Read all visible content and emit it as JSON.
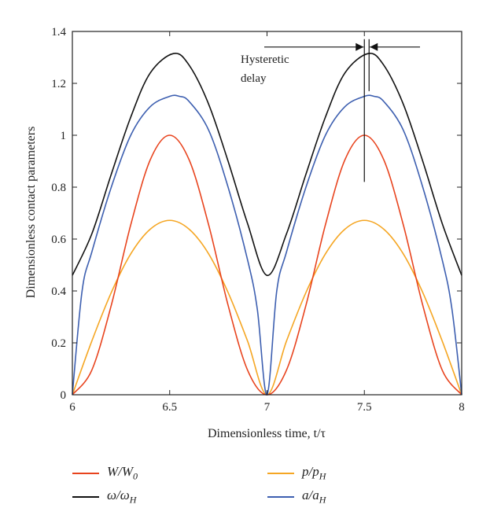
{
  "chart_data": {
    "type": "line",
    "xlabel": "Dimensionless time, t/τ",
    "ylabel": "Dimensionless contact parameters",
    "xlim": [
      6,
      8
    ],
    "ylim": [
      0,
      1.4
    ],
    "xticks": [
      "6",
      "6.5",
      "7",
      "7.5",
      "8"
    ],
    "yticks": [
      "0",
      "0.2",
      "0.4",
      "0.6",
      "0.8",
      "1",
      "1.2",
      "1.4"
    ],
    "grid": false,
    "legend_position": "bottom",
    "annotation": {
      "text_line1": "Hysteretic",
      "text_line2": "delay",
      "x": 7.5,
      "y": 1.34
    },
    "series": [
      {
        "name": "W/W0",
        "color": "#e8431d",
        "x": [
          6.0,
          6.1,
          6.2,
          6.3,
          6.4,
          6.5,
          6.6,
          6.7,
          6.8,
          6.9,
          7.0,
          7.1,
          7.2,
          7.3,
          7.4,
          7.5,
          7.6,
          7.7,
          7.8,
          7.9,
          8.0
        ],
        "values": [
          0.0,
          0.095,
          0.345,
          0.655,
          0.905,
          1.0,
          0.905,
          0.655,
          0.345,
          0.095,
          0.0,
          0.095,
          0.345,
          0.655,
          0.905,
          1.0,
          0.905,
          0.655,
          0.345,
          0.095,
          0.0
        ]
      },
      {
        "name": "ω/ωH",
        "color": "#111111",
        "x": [
          6.0,
          6.1,
          6.2,
          6.3,
          6.4,
          6.52,
          6.6,
          6.7,
          6.8,
          6.9,
          7.0,
          7.1,
          7.2,
          7.3,
          7.4,
          7.52,
          7.6,
          7.7,
          7.8,
          7.9,
          8.0
        ],
        "values": [
          0.46,
          0.62,
          0.85,
          1.07,
          1.24,
          1.315,
          1.27,
          1.12,
          0.9,
          0.66,
          0.46,
          0.62,
          0.85,
          1.07,
          1.24,
          1.315,
          1.27,
          1.12,
          0.9,
          0.66,
          0.46
        ]
      },
      {
        "name": "p/pH",
        "color": "#f5a623",
        "x": [
          6.0,
          6.1,
          6.2,
          6.3,
          6.4,
          6.5,
          6.6,
          6.7,
          6.8,
          6.9,
          7.0,
          7.1,
          7.2,
          7.3,
          7.4,
          7.5,
          7.6,
          7.7,
          7.8,
          7.9,
          8.0
        ],
        "values": [
          0.0,
          0.207,
          0.394,
          0.543,
          0.638,
          0.672,
          0.638,
          0.543,
          0.394,
          0.207,
          0.0,
          0.207,
          0.394,
          0.543,
          0.638,
          0.672,
          0.638,
          0.543,
          0.394,
          0.207,
          0.0
        ]
      },
      {
        "name": "a/aH",
        "color": "#3d5fb0",
        "x": [
          6.0,
          6.05,
          6.1,
          6.2,
          6.3,
          6.4,
          6.5,
          6.55,
          6.6,
          6.7,
          6.8,
          6.9,
          6.95,
          7.0,
          7.05,
          7.1,
          7.2,
          7.3,
          7.4,
          7.5,
          7.55,
          7.6,
          7.7,
          7.8,
          7.9,
          7.95,
          8.0
        ],
        "values": [
          0.0,
          0.4,
          0.55,
          0.8,
          1.0,
          1.11,
          1.15,
          1.15,
          1.13,
          1.02,
          0.8,
          0.52,
          0.33,
          0.0,
          0.4,
          0.55,
          0.8,
          1.0,
          1.11,
          1.15,
          1.15,
          1.13,
          1.02,
          0.8,
          0.52,
          0.33,
          0.0
        ]
      }
    ]
  }
}
